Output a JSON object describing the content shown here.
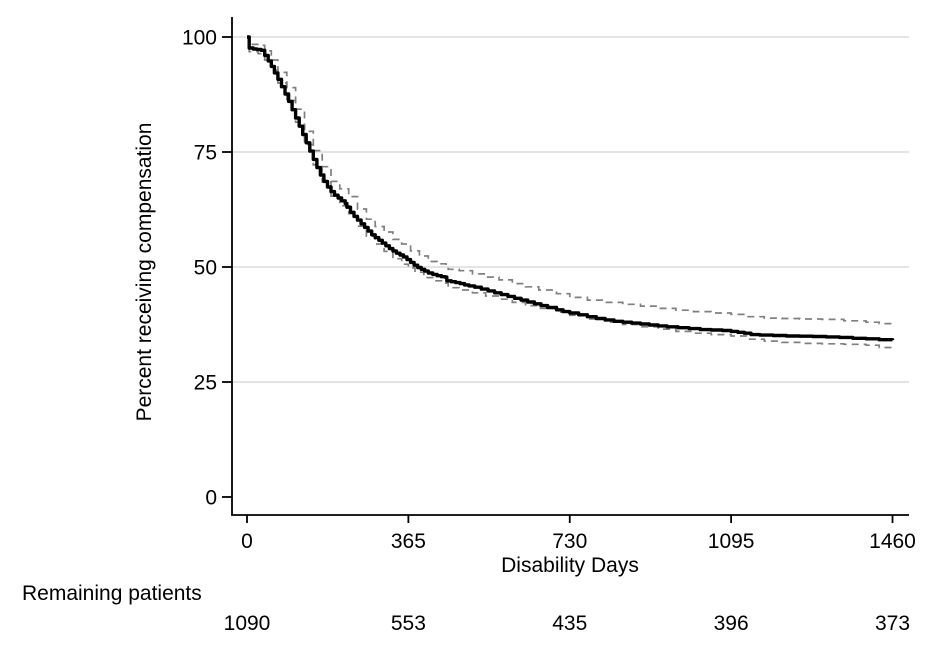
{
  "chart_data": {
    "type": "line",
    "title": "",
    "xlabel": "Disability Days",
    "ylabel": "Percent receiving compensation",
    "xlim": [
      0,
      1460
    ],
    "ylim": [
      0,
      100
    ],
    "x_ticks": [
      0,
      365,
      730,
      1095,
      1460
    ],
    "y_ticks": [
      0,
      25,
      50,
      75,
      100
    ],
    "grid": "horizontal-only",
    "grid_lines_at": [
      25,
      50,
      75,
      100
    ],
    "legend_position": "none",
    "colors": {
      "km_line": "#000000",
      "ci_line": "#808080",
      "gridline": "#dcdcdc",
      "axis": "#000000",
      "background": "#ffffff"
    },
    "series": [
      {
        "name": "km-estimate",
        "style": "solid-step",
        "points": [
          [
            0,
            100
          ],
          [
            5,
            100
          ],
          [
            5,
            97.6
          ],
          [
            14,
            97.4
          ],
          [
            22,
            97.3
          ],
          [
            32,
            97.1
          ],
          [
            40,
            96.0
          ],
          [
            48,
            94.8
          ],
          [
            55,
            93.6
          ],
          [
            62,
            92.2
          ],
          [
            70,
            90.8
          ],
          [
            78,
            89.2
          ],
          [
            86,
            87.6
          ],
          [
            94,
            86.0
          ],
          [
            102,
            84.2
          ],
          [
            110,
            82.4
          ],
          [
            118,
            80.6
          ],
          [
            126,
            78.8
          ],
          [
            134,
            77.0
          ],
          [
            142,
            75.2
          ],
          [
            150,
            73.4
          ],
          [
            158,
            71.6
          ],
          [
            166,
            70.0
          ],
          [
            174,
            68.6
          ],
          [
            182,
            67.4
          ],
          [
            190,
            66.4
          ],
          [
            198,
            65.6
          ],
          [
            206,
            65.0
          ],
          [
            214,
            64.4
          ],
          [
            222,
            63.8
          ],
          [
            226,
            63.0
          ],
          [
            234,
            61.9
          ],
          [
            242,
            61.0
          ],
          [
            250,
            60.2
          ],
          [
            258,
            59.4
          ],
          [
            266,
            58.6
          ],
          [
            274,
            57.8
          ],
          [
            282,
            57.0
          ],
          [
            290,
            56.4
          ],
          [
            298,
            55.8
          ],
          [
            306,
            55.2
          ],
          [
            314,
            54.6
          ],
          [
            322,
            54.0
          ],
          [
            330,
            53.5
          ],
          [
            338,
            53.0
          ],
          [
            346,
            52.6
          ],
          [
            354,
            52.2
          ],
          [
            362,
            51.6
          ],
          [
            370,
            51.0
          ],
          [
            378,
            50.4
          ],
          [
            386,
            49.9
          ],
          [
            394,
            49.5
          ],
          [
            402,
            49.1
          ],
          [
            410,
            48.7
          ],
          [
            420,
            48.4
          ],
          [
            430,
            48.1
          ],
          [
            440,
            47.9
          ],
          [
            448,
            47.8
          ],
          [
            452,
            47.0
          ],
          [
            462,
            46.8
          ],
          [
            472,
            46.6
          ],
          [
            482,
            46.4
          ],
          [
            492,
            46.1
          ],
          [
            502,
            45.9
          ],
          [
            515,
            45.6
          ],
          [
            530,
            45.2
          ],
          [
            545,
            44.8
          ],
          [
            560,
            44.4
          ],
          [
            575,
            44.0
          ],
          [
            590,
            43.6
          ],
          [
            605,
            43.2
          ],
          [
            620,
            42.8
          ],
          [
            635,
            42.4
          ],
          [
            650,
            42.0
          ],
          [
            665,
            41.6
          ],
          [
            680,
            41.2
          ],
          [
            700,
            40.7
          ],
          [
            715,
            40.3
          ],
          [
            730,
            40.0
          ],
          [
            750,
            39.6
          ],
          [
            770,
            39.2
          ],
          [
            790,
            38.8
          ],
          [
            810,
            38.5
          ],
          [
            830,
            38.2
          ],
          [
            850,
            38.0
          ],
          [
            870,
            37.8
          ],
          [
            890,
            37.6
          ],
          [
            910,
            37.4
          ],
          [
            930,
            37.2
          ],
          [
            950,
            37.0
          ],
          [
            975,
            36.8
          ],
          [
            1000,
            36.6
          ],
          [
            1025,
            36.4
          ],
          [
            1050,
            36.3
          ],
          [
            1075,
            36.2
          ],
          [
            1095,
            36.0
          ],
          [
            1110,
            35.8
          ],
          [
            1125,
            35.6
          ],
          [
            1140,
            35.3
          ],
          [
            1160,
            35.2
          ],
          [
            1190,
            35.1
          ],
          [
            1220,
            35.0
          ],
          [
            1250,
            34.95
          ],
          [
            1280,
            34.9
          ],
          [
            1310,
            34.8
          ],
          [
            1340,
            34.7
          ],
          [
            1370,
            34.5
          ],
          [
            1400,
            34.4
          ],
          [
            1430,
            34.2
          ],
          [
            1460,
            34.1
          ]
        ]
      },
      {
        "name": "ci-upper",
        "style": "dashed-step",
        "points": [
          [
            0,
            100
          ],
          [
            5,
            100
          ],
          [
            5,
            98.4
          ],
          [
            30,
            98.2
          ],
          [
            40,
            97.0
          ],
          [
            55,
            95.0
          ],
          [
            70,
            92.3
          ],
          [
            90,
            89.0
          ],
          [
            110,
            84.3
          ],
          [
            130,
            79.5
          ],
          [
            150,
            75.3
          ],
          [
            170,
            71.8
          ],
          [
            190,
            68.6
          ],
          [
            210,
            67.0
          ],
          [
            230,
            65.3
          ],
          [
            250,
            62.6
          ],
          [
            270,
            60.4
          ],
          [
            290,
            58.8
          ],
          [
            310,
            57.6
          ],
          [
            330,
            56.0
          ],
          [
            350,
            55.0
          ],
          [
            370,
            53.5
          ],
          [
            390,
            52.4
          ],
          [
            410,
            51.2
          ],
          [
            430,
            50.7
          ],
          [
            450,
            50.3
          ],
          [
            455,
            49.5
          ],
          [
            480,
            49.2
          ],
          [
            510,
            48.5
          ],
          [
            540,
            47.8
          ],
          [
            570,
            47.2
          ],
          [
            600,
            46.4
          ],
          [
            630,
            45.7
          ],
          [
            660,
            45.0
          ],
          [
            700,
            44.2
          ],
          [
            730,
            43.4
          ],
          [
            770,
            42.8
          ],
          [
            810,
            42.3
          ],
          [
            850,
            41.9
          ],
          [
            890,
            41.5
          ],
          [
            930,
            41.0
          ],
          [
            970,
            40.6
          ],
          [
            1010,
            40.3
          ],
          [
            1050,
            40.0
          ],
          [
            1095,
            39.7
          ],
          [
            1130,
            39.2
          ],
          [
            1170,
            38.9
          ],
          [
            1210,
            38.8
          ],
          [
            1250,
            38.7
          ],
          [
            1300,
            38.6
          ],
          [
            1350,
            38.3
          ],
          [
            1400,
            38.0
          ],
          [
            1430,
            37.7
          ],
          [
            1460,
            37.4
          ]
        ]
      },
      {
        "name": "ci-lower",
        "style": "dashed-step",
        "points": [
          [
            0,
            100
          ],
          [
            5,
            100
          ],
          [
            5,
            96.8
          ],
          [
            25,
            96.4
          ],
          [
            40,
            95.0
          ],
          [
            55,
            92.8
          ],
          [
            70,
            90.0
          ],
          [
            90,
            86.2
          ],
          [
            110,
            81.5
          ],
          [
            130,
            76.6
          ],
          [
            150,
            72.2
          ],
          [
            170,
            68.5
          ],
          [
            190,
            65.4
          ],
          [
            210,
            63.3
          ],
          [
            230,
            61.6
          ],
          [
            250,
            58.9
          ],
          [
            270,
            56.7
          ],
          [
            290,
            55.0
          ],
          [
            310,
            53.4
          ],
          [
            330,
            51.8
          ],
          [
            350,
            50.6
          ],
          [
            365,
            49.8
          ],
          [
            380,
            48.9
          ],
          [
            400,
            47.7
          ],
          [
            420,
            47.0
          ],
          [
            440,
            46.5
          ],
          [
            455,
            45.5
          ],
          [
            480,
            45.0
          ],
          [
            510,
            44.4
          ],
          [
            540,
            43.7
          ],
          [
            570,
            43.0
          ],
          [
            600,
            42.3
          ],
          [
            630,
            41.6
          ],
          [
            660,
            41.0
          ],
          [
            700,
            40.2
          ],
          [
            730,
            39.5
          ],
          [
            770,
            38.7
          ],
          [
            810,
            38.0
          ],
          [
            850,
            37.5
          ],
          [
            890,
            37.0
          ],
          [
            930,
            36.5
          ],
          [
            970,
            36.0
          ],
          [
            1010,
            35.6
          ],
          [
            1050,
            35.3
          ],
          [
            1095,
            35.0
          ],
          [
            1130,
            34.3
          ],
          [
            1170,
            33.9
          ],
          [
            1210,
            33.6
          ],
          [
            1250,
            33.4
          ],
          [
            1300,
            33.3
          ],
          [
            1350,
            33.2
          ],
          [
            1400,
            33.0
          ],
          [
            1430,
            32.5
          ],
          [
            1460,
            31.8
          ]
        ]
      }
    ],
    "risk_table": {
      "label": "Remaining patients",
      "at_days": [
        0,
        365,
        730,
        1095,
        1460
      ],
      "values": [
        "1090",
        "553",
        "435",
        "396",
        "373"
      ]
    }
  }
}
